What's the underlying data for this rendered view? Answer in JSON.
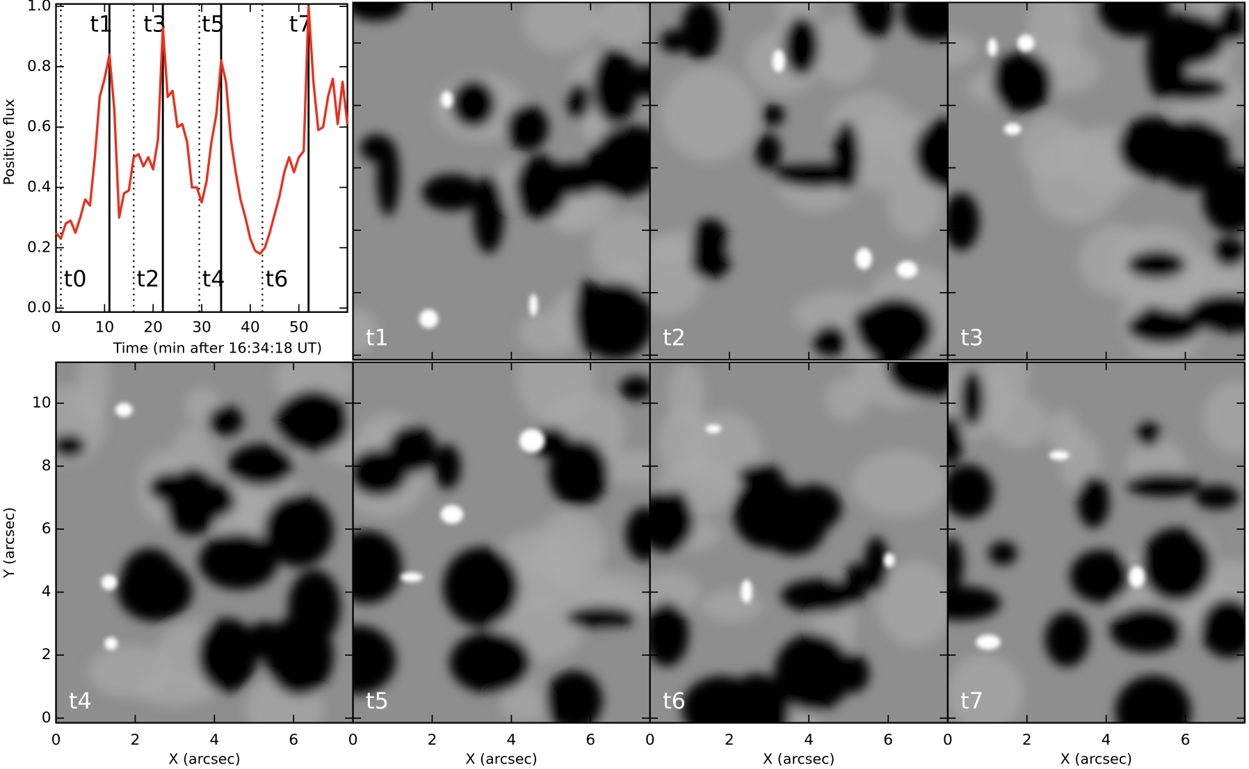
{
  "chart_data": [
    {
      "type": "line",
      "xlabel": "Time (min after 16:34:18 UT)",
      "ylabel": "Positive flux",
      "x": [
        0,
        1,
        2,
        3,
        4,
        5,
        6,
        7,
        8,
        9,
        10,
        11,
        12,
        13,
        14,
        15,
        16,
        17,
        18,
        19,
        20,
        21,
        22,
        23,
        24,
        25,
        26,
        27,
        28,
        29,
        30,
        31,
        32,
        33,
        34,
        35,
        36,
        37,
        38,
        39,
        40,
        41,
        42,
        43,
        44,
        45,
        46,
        47,
        48,
        49,
        50,
        51,
        52,
        53,
        54,
        55,
        56,
        57,
        58,
        59,
        60
      ],
      "values": [
        0.25,
        0.23,
        0.28,
        0.29,
        0.25,
        0.3,
        0.36,
        0.34,
        0.5,
        0.7,
        0.76,
        0.84,
        0.66,
        0.3,
        0.38,
        0.39,
        0.5,
        0.51,
        0.47,
        0.5,
        0.46,
        0.56,
        0.93,
        0.7,
        0.72,
        0.6,
        0.61,
        0.55,
        0.4,
        0.4,
        0.35,
        0.42,
        0.55,
        0.64,
        0.82,
        0.75,
        0.56,
        0.45,
        0.36,
        0.3,
        0.23,
        0.19,
        0.18,
        0.2,
        0.25,
        0.31,
        0.37,
        0.45,
        0.5,
        0.45,
        0.5,
        0.52,
        1.0,
        0.75,
        0.59,
        0.6,
        0.7,
        0.76,
        0.61,
        0.75,
        0.61
      ],
      "color": "#e8321e",
      "xlim": [
        0,
        60
      ],
      "ylim": [
        0,
        1
      ],
      "xticks": [
        0,
        10,
        20,
        30,
        40,
        50
      ],
      "yticks": [
        {
          "value": 0,
          "label": "0.0"
        },
        0.2,
        0.4,
        0.6,
        0.8,
        {
          "value": 1,
          "label": "1.0"
        }
      ],
      "markers": [
        {
          "label": "t0",
          "x": 1,
          "style": "dotted"
        },
        {
          "label": "t1",
          "x": 11,
          "style": "solid"
        },
        {
          "label": "t2",
          "x": 16,
          "style": "dotted"
        },
        {
          "label": "t3",
          "x": 22,
          "style": "solid"
        },
        {
          "label": "t4",
          "x": 29.5,
          "style": "dotted"
        },
        {
          "label": "t5",
          "x": 34,
          "style": "solid"
        },
        {
          "label": "t6",
          "x": 42.5,
          "style": "dotted"
        },
        {
          "label": "t7",
          "x": 52,
          "style": "solid"
        }
      ]
    },
    {
      "type": "image-grid",
      "xlabel": "X (arcsec)",
      "ylabel": "Y (arcsec)",
      "xlim": [
        0,
        7.5
      ],
      "ylim": [
        -0.15,
        11.3
      ],
      "xticks": [
        0,
        2,
        4,
        6
      ],
      "yticks": [
        0,
        2,
        4,
        6,
        8,
        10
      ],
      "panels": [
        "t1",
        "t2",
        "t3",
        "t4",
        "t5",
        "t6",
        "t7"
      ]
    }
  ]
}
